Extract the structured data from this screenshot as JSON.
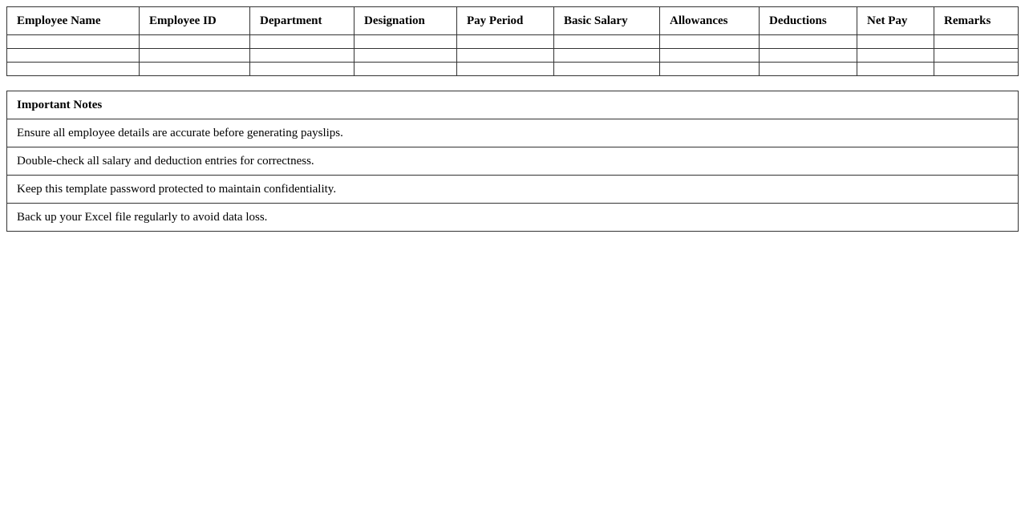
{
  "payroll_table": {
    "headers": [
      "Employee Name",
      "Employee ID",
      "Department",
      "Designation",
      "Pay Period",
      "Basic Salary",
      "Allowances",
      "Deductions",
      "Net Pay",
      "Remarks"
    ],
    "rows": [
      [
        "",
        "",
        "",
        "",
        "",
        "",
        "",
        "",
        "",
        ""
      ],
      [
        "",
        "",
        "",
        "",
        "",
        "",
        "",
        "",
        "",
        ""
      ],
      [
        "",
        "",
        "",
        "",
        "",
        "",
        "",
        "",
        "",
        ""
      ]
    ]
  },
  "notes": {
    "title": "Important Notes",
    "items": [
      "Ensure all employee details are accurate before generating payslips.",
      "Double-check all salary and deduction entries for correctness.",
      "Keep this template password protected to maintain confidentiality.",
      "Back up your Excel file regularly to avoid data loss."
    ]
  }
}
